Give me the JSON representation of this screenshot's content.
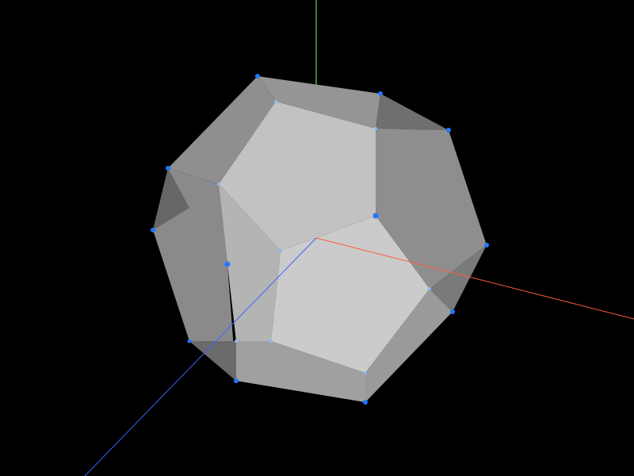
{
  "scene": {
    "background_color": "#000000",
    "object": "dodecahedron",
    "face_colors": {
      "front": "#c4c4c4",
      "side": "#9e9e9e",
      "dark": "#6c6c6c",
      "rim": "#8a8a8a"
    },
    "vertex_color": "#1f78ff",
    "axes": {
      "x_color": "#ff5a3c",
      "y_color": "#7cff6a",
      "z_color": "#3a64ff"
    },
    "vertex_count": 20
  }
}
